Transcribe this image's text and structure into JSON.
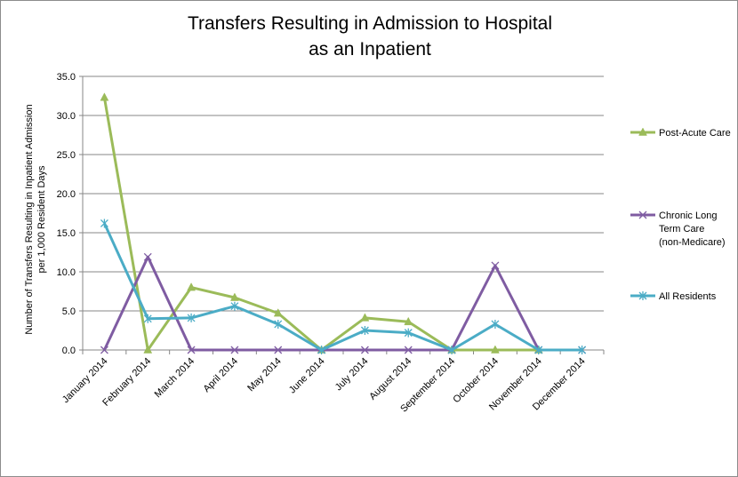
{
  "chart_data": {
    "type": "line",
    "title_lines": [
      "Transfers Resulting in Admission to Hospital",
      "as an Inpatient"
    ],
    "ylabel_lines": [
      "Number  of Transfers Resulting in Inpatient Admission",
      "per 1,000 Resident Days"
    ],
    "xlabel": "",
    "categories": [
      "January 2014",
      "February 2014",
      "March 2014",
      "April 2014",
      "May 2014",
      "June 2014",
      "July 2014",
      "August 2014",
      "September 2014",
      "October 2014",
      "November 2014",
      "December 2014"
    ],
    "ylim": [
      0,
      35
    ],
    "yticks": [
      "0.0",
      "5.0",
      "10.0",
      "15.0",
      "20.0",
      "25.0",
      "30.0",
      "35.0"
    ],
    "grid": true,
    "legend_position": "right",
    "series": [
      {
        "name": "Post-Acute Care",
        "label_lines": [
          "Post-Acute Care"
        ],
        "color": "#9bbb59",
        "marker": "triangle",
        "values": [
          32.3,
          0.0,
          8.0,
          6.7,
          4.7,
          0.0,
          4.1,
          3.6,
          0.0,
          0.0,
          0.0,
          null
        ]
      },
      {
        "name": "Chronic Long Term Care (non-Medicare)",
        "label_lines": [
          "Chronic Long",
          "Term Care",
          "(non-Medicare)"
        ],
        "color": "#7f5ca2",
        "marker": "x",
        "values": [
          0.0,
          11.9,
          0.0,
          0.0,
          0.0,
          0.0,
          0.0,
          0.0,
          0.0,
          10.8,
          0.0,
          0.0
        ]
      },
      {
        "name": "All Residents",
        "label_lines": [
          "All Residents"
        ],
        "color": "#4bacc6",
        "marker": "star",
        "values": [
          16.2,
          4.0,
          4.1,
          5.6,
          3.3,
          0.0,
          2.5,
          2.2,
          0.0,
          3.3,
          0.0,
          0.0
        ]
      }
    ]
  }
}
